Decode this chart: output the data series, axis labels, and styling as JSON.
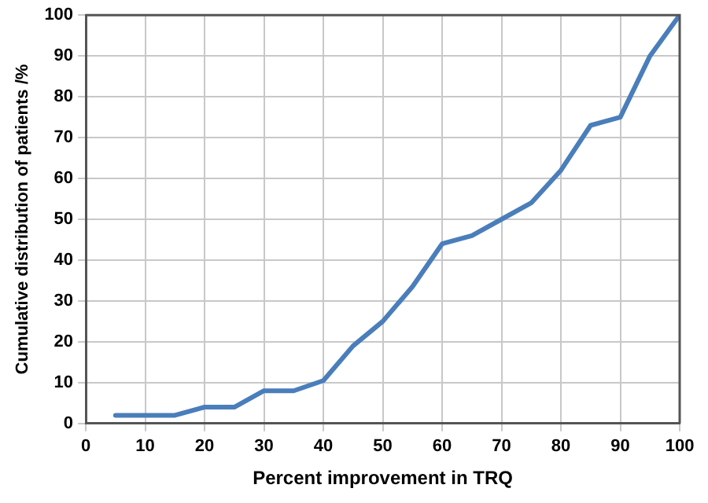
{
  "chart_data": {
    "type": "line",
    "xlabel": "Percent improvement in TRQ",
    "ylabel": "Cumulative distribution of patients /%",
    "x": [
      5,
      10,
      15,
      20,
      25,
      30,
      35,
      40,
      45,
      50,
      55,
      60,
      65,
      70,
      75,
      80,
      85,
      90,
      95,
      100
    ],
    "series": [
      {
        "color": "#4a7ebb",
        "values": [
          2,
          2,
          2,
          4,
          4,
          8,
          8,
          10.5,
          19,
          25,
          33.5,
          44,
          46,
          50,
          54,
          62,
          73,
          75,
          90,
          100
        ]
      }
    ],
    "xlim": [
      0,
      100
    ],
    "xticks": [
      0,
      10,
      20,
      30,
      40,
      50,
      60,
      70,
      80,
      90,
      100
    ],
    "ylim": [
      0,
      100
    ],
    "yticks": [
      0,
      10,
      20,
      30,
      40,
      50,
      60,
      70,
      80,
      90,
      100
    ],
    "grid": true,
    "legend": false,
    "marker": "none",
    "line_style": "solid"
  }
}
